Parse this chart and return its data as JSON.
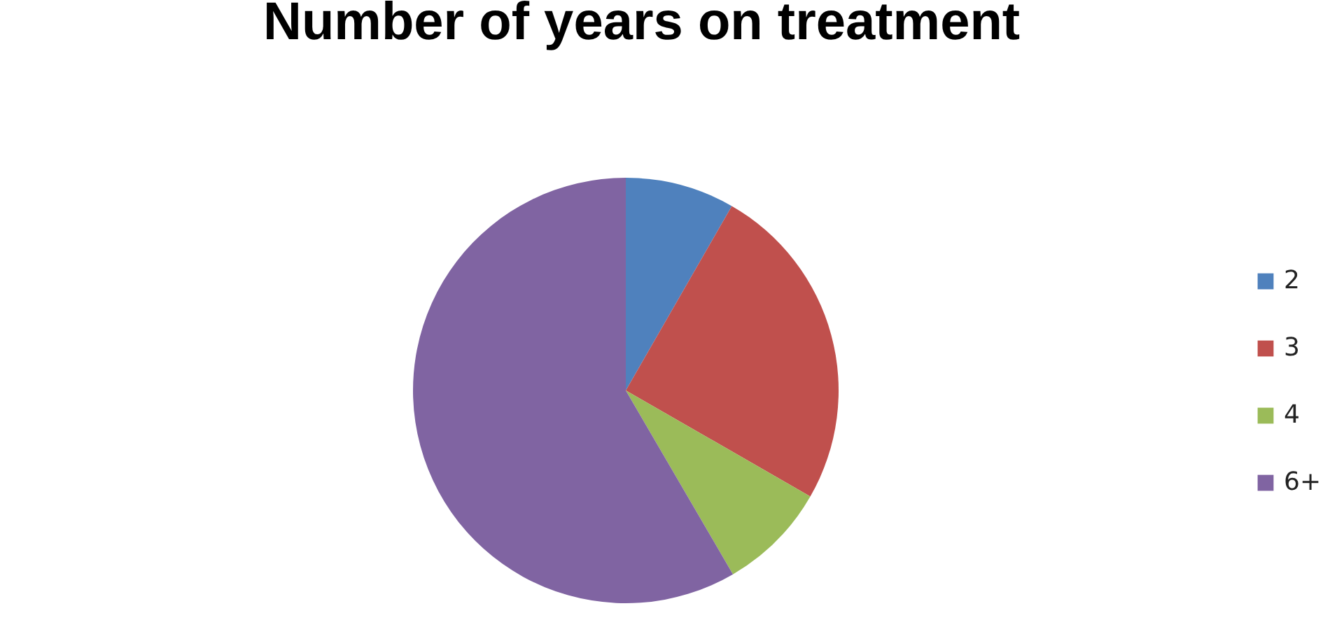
{
  "chart_data": {
    "type": "pie",
    "title": "Number of years on treatment",
    "categories": [
      "2",
      "3",
      "4",
      "6+"
    ],
    "values": [
      8.3,
      25,
      8.3,
      58.4
    ],
    "colors": [
      "#4f81bd",
      "#c0504d",
      "#9bbb59",
      "#8064a2"
    ],
    "legend": "right"
  }
}
